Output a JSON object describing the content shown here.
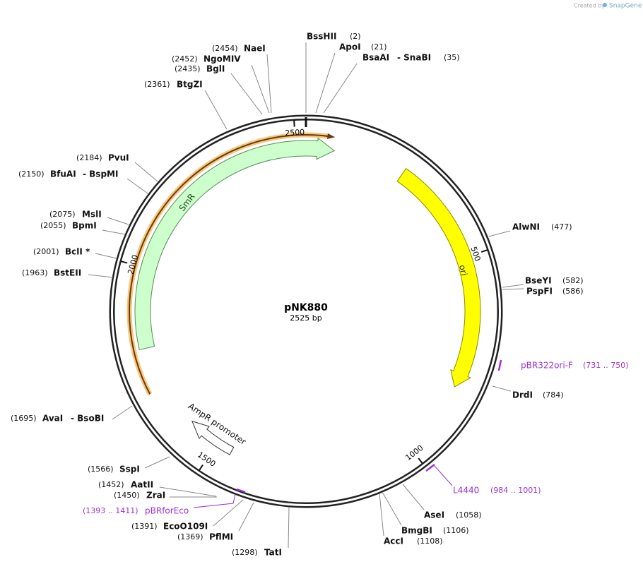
{
  "title": "pNK880",
  "size": "2525 bp",
  "branding": {
    "prefix": "Created by",
    "name": "SnapGene"
  },
  "ticks": [
    500,
    1000,
    1500,
    2000,
    2500
  ],
  "features": [
    {
      "name": "SmR"
    },
    {
      "name": "ori"
    },
    {
      "name": "AmpR promoter"
    }
  ],
  "sites": [
    {
      "name": "BssHII",
      "position": "(2)"
    },
    {
      "name": "ApoI",
      "position": "(21)"
    },
    {
      "name": "BsaAI",
      "name2": "- SnaBI",
      "position": "(35)"
    },
    {
      "name": "NaeI",
      "position": "(2454)"
    },
    {
      "name": "NgoMIV",
      "position": "(2452)"
    },
    {
      "name": "BglI",
      "position": "(2435)"
    },
    {
      "name": "BtgZI",
      "position": "(2361)"
    },
    {
      "name": "PvuI",
      "position": "(2184)"
    },
    {
      "name": "BfuAI",
      "name2": "- BspMI",
      "position": "(2150)"
    },
    {
      "name": "MslI",
      "position": "(2075)"
    },
    {
      "name": "BpmI",
      "position": "(2055)"
    },
    {
      "name": "BclI *",
      "position": "(2001)"
    },
    {
      "name": "BstEII",
      "position": "(1963)"
    },
    {
      "name": "AvaI",
      "name2": "- BsoBI",
      "position": "(1695)"
    },
    {
      "name": "SspI",
      "position": "(1566)"
    },
    {
      "name": "AatII",
      "position": "(1452)"
    },
    {
      "name": "ZraI",
      "position": "(1450)"
    },
    {
      "name": "EcoO109I",
      "position": "(1391)"
    },
    {
      "name": "PflMI",
      "position": "(1369)"
    },
    {
      "name": "TatI",
      "position": "(1298)"
    },
    {
      "name": "AccI",
      "position": "(1108)"
    },
    {
      "name": "BmgBI",
      "position": "(1106)"
    },
    {
      "name": "AseI",
      "position": "(1058)"
    },
    {
      "name": "DrdI",
      "position": "(784)"
    },
    {
      "name": "BseYI",
      "position": "(582)"
    },
    {
      "name": "PspFI",
      "position": "(586)"
    },
    {
      "name": "AlwNI",
      "position": "(477)"
    }
  ],
  "primers": [
    {
      "name": "pBR322ori-F",
      "range": "(731 .. 750)"
    },
    {
      "name": "L4440",
      "range": "(984 .. 1001)"
    },
    {
      "name": "pBRforEco",
      "range": "(1393 .. 1411)"
    }
  ]
}
